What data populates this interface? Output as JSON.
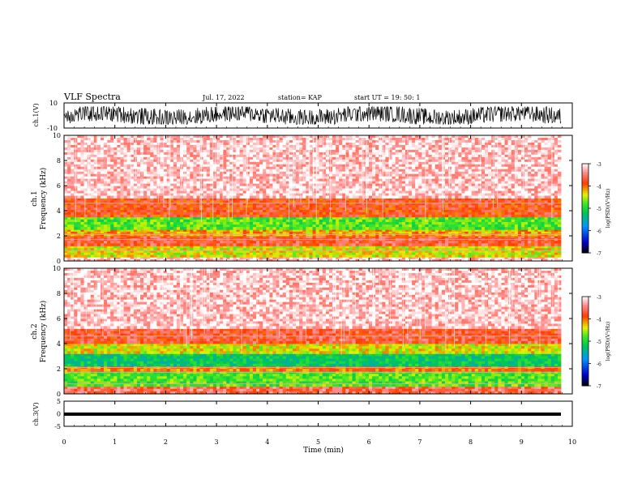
{
  "header": {
    "title": "VLF Spectra",
    "date": "Jul. 17, 2022",
    "station": "station= KAP",
    "start": "start UT =   19: 50: 1"
  },
  "chart_data": [
    {
      "type": "line",
      "panel": "ch1-waveform",
      "ylabel": "ch.1(V)",
      "ylim": [
        -10,
        10
      ],
      "y_ticks": [
        "10",
        "-10"
      ],
      "series": [
        {
          "color": "#000000",
          "description_range": [
            -7,
            7
          ]
        }
      ]
    },
    {
      "type": "heatmap",
      "panel": "ch1-spectrogram",
      "ylabel": "ch.1\nFrequency (kHz)",
      "ylabel_line1": "ch.1",
      "ylabel_line2": "Frequency (kHz)",
      "ylim": [
        0,
        10
      ],
      "y_ticks": [
        "0",
        "2",
        "4",
        "6",
        "8",
        "10"
      ],
      "xlim": [
        0,
        10
      ],
      "colorbar": {
        "label": "log(PSD)(V²/Hz)",
        "ticks": [
          "-3",
          "-4",
          "-5",
          "-6",
          "-7"
        ],
        "range": [
          -7,
          -3
        ]
      },
      "bands": [
        {
          "from": 0.0,
          "to": 0.3,
          "level": -3.2
        },
        {
          "from": 0.3,
          "to": 1.2,
          "level": -4.4
        },
        {
          "from": 1.2,
          "to": 2.0,
          "level": -3.7
        },
        {
          "from": 2.0,
          "to": 2.5,
          "level": -4.2
        },
        {
          "from": 2.5,
          "to": 3.5,
          "level": -4.8
        },
        {
          "from": 3.5,
          "to": 5.0,
          "level": -3.8
        },
        {
          "from": 5.0,
          "to": 10.0,
          "level": -3.2
        }
      ]
    },
    {
      "type": "heatmap",
      "panel": "ch2-spectrogram",
      "ylabel": "ch.2\nFrequency (kHz)",
      "ylabel_line1": "ch.2",
      "ylabel_line2": "Frequency (kHz)",
      "ylim": [
        0,
        10
      ],
      "y_ticks": [
        "0",
        "2",
        "4",
        "6",
        "8",
        "10"
      ],
      "xlim": [
        0,
        10
      ],
      "colorbar": {
        "label": "log(PSD)(V²/Hz)",
        "ticks": [
          "-3",
          "-4",
          "-5",
          "-6",
          "-7"
        ],
        "range": [
          -7,
          -3
        ]
      },
      "bands": [
        {
          "from": 0.0,
          "to": 0.6,
          "level": -3.6
        },
        {
          "from": 0.6,
          "to": 1.8,
          "level": -4.8
        },
        {
          "from": 1.8,
          "to": 2.2,
          "level": -4.0
        },
        {
          "from": 2.2,
          "to": 3.2,
          "level": -5.2
        },
        {
          "from": 3.2,
          "to": 4.0,
          "level": -4.4
        },
        {
          "from": 4.0,
          "to": 5.2,
          "level": -3.7
        },
        {
          "from": 5.2,
          "to": 10.0,
          "level": -3.2
        }
      ]
    },
    {
      "type": "line",
      "panel": "ch3-waveform",
      "ylabel": "ch.3(V)",
      "ylim": [
        -5,
        5
      ],
      "y_ticks": [
        "5",
        "0",
        "-5"
      ],
      "series": [
        {
          "color": "#000000",
          "description_range": [
            -0.5,
            -0.5
          ]
        }
      ]
    }
  ],
  "x_axis": {
    "label": "Time (min)",
    "xlim": [
      0,
      10
    ],
    "ticks": [
      "0",
      "1",
      "2",
      "3",
      "4",
      "5",
      "6",
      "7",
      "8",
      "9",
      "10"
    ]
  }
}
